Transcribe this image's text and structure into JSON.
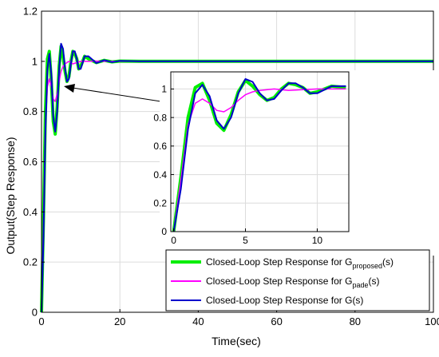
{
  "chart_data": [
    {
      "type": "line",
      "xlabel": "Time(sec)",
      "ylabel": "Output(Step Response)",
      "xlim": [
        0,
        100
      ],
      "ylim": [
        0,
        1.2
      ],
      "xticks": [
        0,
        20,
        40,
        60,
        80,
        100
      ],
      "yticks": [
        0,
        0.2,
        0.4,
        0.6,
        0.8,
        1.0,
        1.2
      ],
      "ytick_labels": [
        "0",
        "0.2",
        "0.4",
        "0.6",
        "0.8",
        "1",
        "1.2"
      ],
      "grid": true,
      "legend": {
        "placement": "bottom-right",
        "entries": [
          {
            "text": "Closed-Loop Step Response for G",
            "sub": "proposed",
            "suffix": "(s)",
            "color": "#00ee00"
          },
          {
            "text": "Closed-Loop Step Response for G",
            "sub": "pade",
            "suffix": "(s)",
            "color": "#ff00ff"
          },
          {
            "text": "Closed-Loop Step Response for G(s)",
            "sub": "",
            "suffix": "",
            "color": "#0000cc"
          }
        ]
      },
      "series": [
        {
          "color": "#00ee00",
          "x": [
            0,
            0.5,
            1,
            1.5,
            2,
            2.5,
            3,
            3.5,
            4,
            4.5,
            5,
            5.5,
            6,
            6.5,
            7,
            7.5,
            8,
            8.5,
            9,
            9.5,
            10,
            11,
            12,
            14,
            16,
            18,
            20,
            25,
            30,
            100
          ],
          "y": [
            0,
            0.38,
            0.8,
            1.01,
            1.04,
            0.92,
            0.76,
            0.71,
            0.82,
            0.98,
            1.06,
            1.02,
            0.96,
            0.92,
            0.94,
            1.0,
            1.04,
            1.03,
            1.01,
            0.97,
            0.98,
            1.02,
            1.01,
            0.995,
            1.004,
            0.998,
            1.001,
            1.0,
            1.0,
            1.0
          ]
        },
        {
          "color": "#ff00ff",
          "x": [
            0,
            0.5,
            1,
            1.5,
            2,
            2.5,
            3,
            3.5,
            4,
            4.5,
            5,
            5.5,
            6,
            7,
            8,
            9,
            10,
            11,
            12,
            14,
            16,
            18,
            20,
            25,
            100
          ],
          "y": [
            0,
            0.36,
            0.75,
            0.9,
            0.93,
            0.9,
            0.85,
            0.84,
            0.87,
            0.92,
            0.96,
            0.98,
            0.99,
            1.0,
            0.99,
            0.995,
            1.0,
            1.0,
            1.0,
            1.001,
            1.0,
            1.0,
            1.0,
            1.0,
            1.0
          ]
        },
        {
          "color": "#0000cc",
          "x": [
            0,
            0.5,
            1,
            1.5,
            2,
            2.5,
            3,
            3.5,
            4,
            4.5,
            5,
            5.5,
            6,
            6.5,
            7,
            7.5,
            8,
            8.5,
            9,
            9.5,
            10,
            11,
            12,
            14,
            16,
            18,
            20,
            25,
            30,
            100
          ],
          "y": [
            0,
            0.3,
            0.72,
            0.97,
            1.03,
            0.95,
            0.78,
            0.72,
            0.8,
            0.97,
            1.07,
            1.05,
            0.97,
            0.92,
            0.93,
            0.99,
            1.04,
            1.04,
            1.01,
            0.97,
            0.97,
            1.02,
            1.02,
            0.993,
            1.005,
            0.997,
            1.002,
            1.0,
            1.0,
            1.0
          ]
        }
      ]
    },
    {
      "type": "line",
      "xlabel": "",
      "ylabel": "",
      "xlim": [
        -0.2,
        12.2
      ],
      "ylim": [
        0,
        1.12
      ],
      "xticks": [
        0,
        5,
        10
      ],
      "yticks": [
        0,
        0.2,
        0.4,
        0.6,
        0.8,
        1.0
      ],
      "ytick_labels": [
        "0",
        "0.2",
        "0.4",
        "0.6",
        "0.8",
        "1"
      ],
      "grid": true,
      "series_ref": "same series as main chart (zoomed view 0–12 s)"
    }
  ]
}
